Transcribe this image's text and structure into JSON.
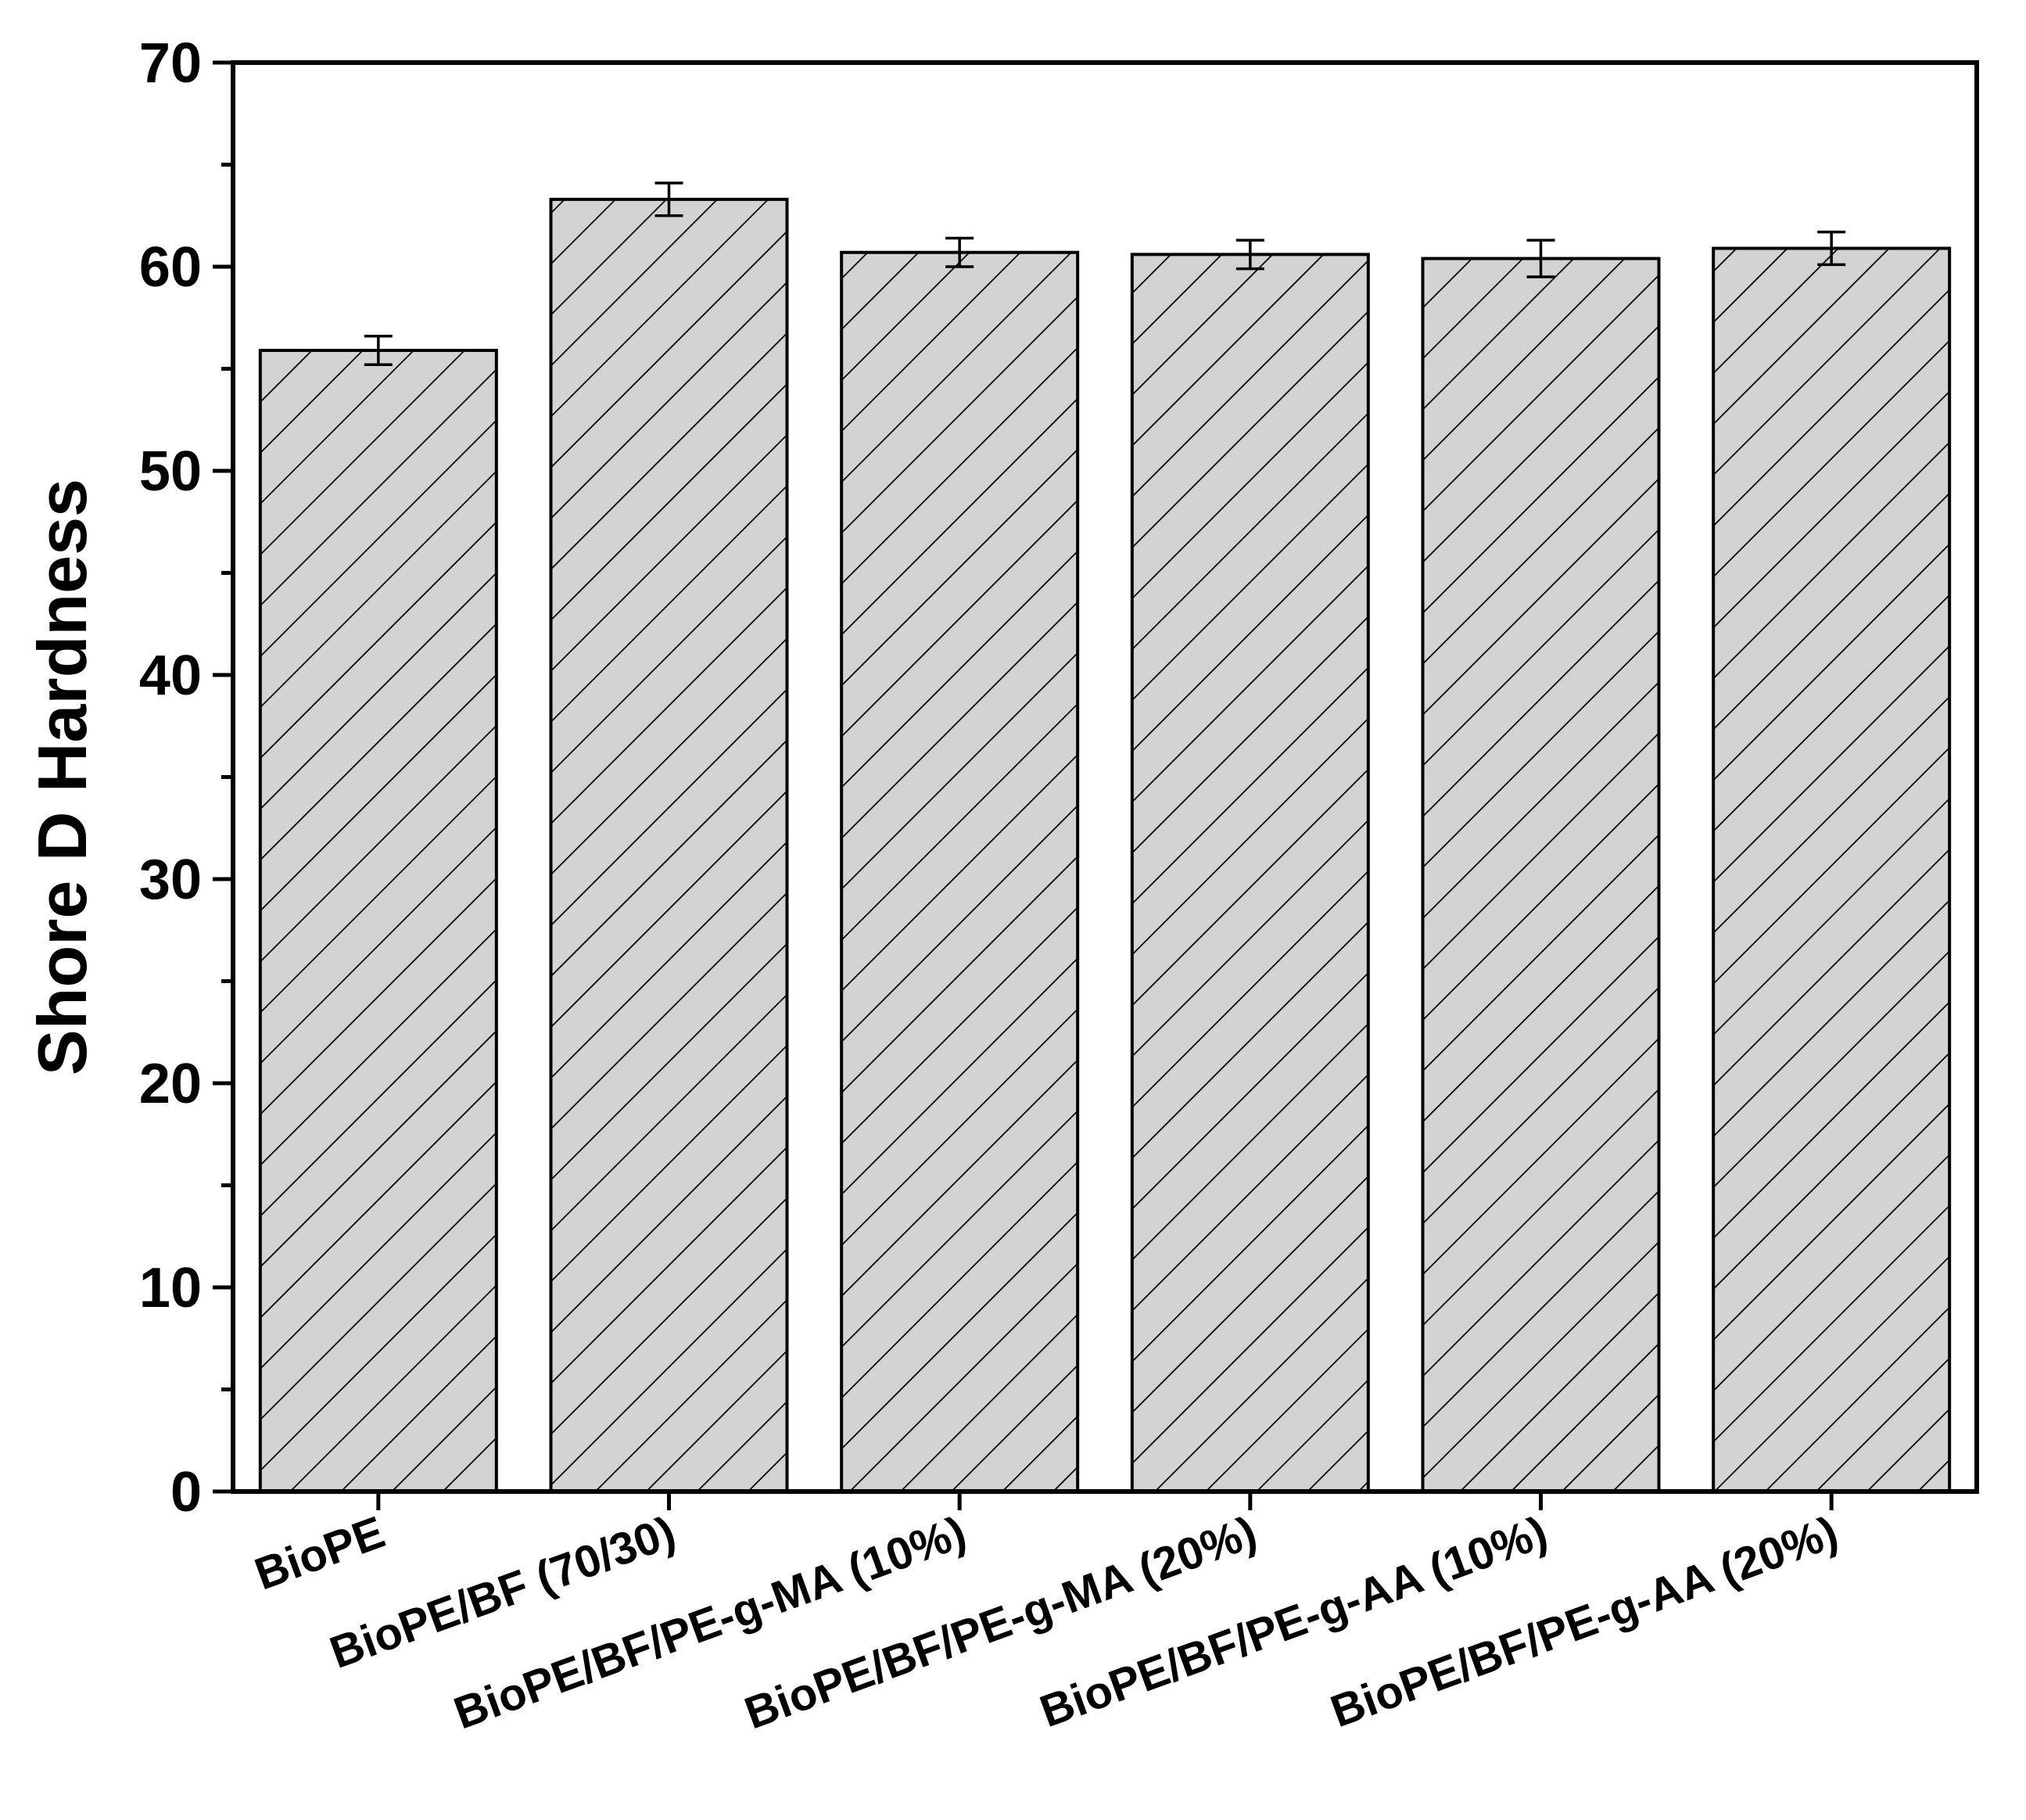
{
  "chart_data": {
    "type": "bar",
    "title": "",
    "xlabel": "",
    "ylabel": "Shore D Hardness",
    "ylim": [
      0,
      70
    ],
    "y_major_ticks": [
      0,
      10,
      20,
      30,
      40,
      50,
      60,
      70
    ],
    "y_minor_step": 5,
    "categories": [
      "BioPE",
      "BioPE/BF (70/30)",
      "BioPE/BF/PE-g-MA (10%)",
      "BioPE/BF/PE-g-MA (20%)",
      "BioPE/BF/PE-g-AA (10%)",
      "BioPE/BF/PE-g-AA (20%)"
    ],
    "values": [
      55.9,
      63.3,
      60.7,
      60.6,
      60.4,
      60.9
    ],
    "errors": [
      0.7,
      0.8,
      0.7,
      0.7,
      0.9,
      0.8
    ],
    "bar_fill": "#d3d3d3",
    "bar_hatch": "diagonal lines (\\\\)",
    "bar_stroke": "#000000",
    "grid": false,
    "legend": "none"
  }
}
